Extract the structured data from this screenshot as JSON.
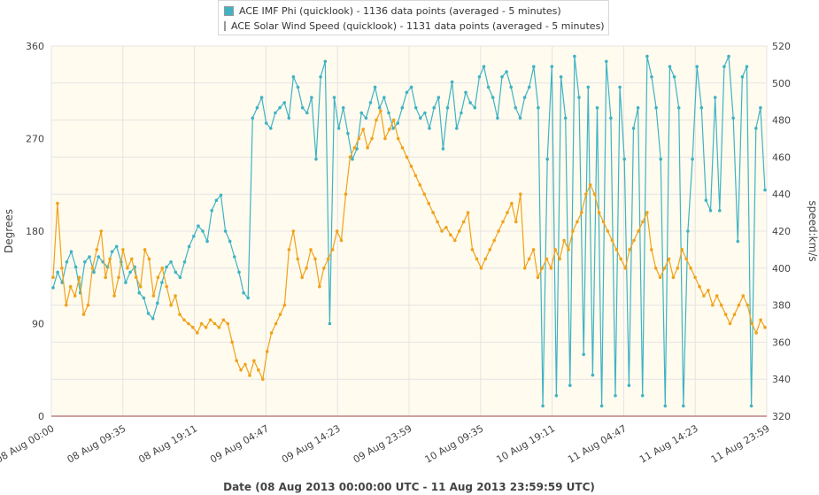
{
  "legend": {
    "items": [
      {
        "label": "ACE IMF Phi (quicklook) - 1136 data points (averaged - 5 minutes)",
        "color": "#3fb3c4"
      },
      {
        "label": "ACE Solar Wind Speed (quicklook) - 1131 data points (averaged - 5 minutes)",
        "color": "#f0a21a"
      }
    ]
  },
  "chart_data": {
    "type": "line",
    "xlabel": "Date (08 Aug 2013 00:00:00 UTC - 11 Aug 2013 23:59:59 UTC)",
    "x_ticks": [
      "08 Aug 00:00",
      "08 Aug 09:35",
      "08 Aug 19:11",
      "09 Aug 04:47",
      "09 Aug 14:23",
      "09 Aug 23:59",
      "10 Aug 09:35",
      "10 Aug 19:11",
      "11 Aug 04:47",
      "11 Aug 14:23",
      "11 Aug 23:59"
    ],
    "y_left": {
      "label": "Degrees",
      "ticks": [
        0,
        90,
        180,
        270,
        360
      ],
      "range": [
        0,
        360
      ]
    },
    "y_right": {
      "label": "speed:km/s",
      "ticks": [
        320,
        340,
        360,
        380,
        400,
        420,
        440,
        460,
        480,
        500,
        520
      ],
      "range": [
        320,
        520
      ]
    },
    "grid": true,
    "legend_position": "top-center",
    "series": [
      {
        "name": "ACE IMF Phi (quicklook) - 1136 data points (averaged - 5 minutes)",
        "axis": "left",
        "color": "#3fb3c4",
        "values": [
          125,
          140,
          130,
          150,
          160,
          145,
          120,
          150,
          155,
          140,
          155,
          150,
          145,
          160,
          165,
          150,
          130,
          140,
          145,
          120,
          115,
          100,
          95,
          110,
          130,
          145,
          150,
          140,
          135,
          150,
          165,
          175,
          185,
          180,
          170,
          200,
          210,
          215,
          180,
          170,
          155,
          140,
          120,
          115,
          290,
          300,
          310,
          285,
          280,
          295,
          300,
          305,
          290,
          330,
          320,
          300,
          295,
          310,
          250,
          330,
          345,
          90,
          310,
          280,
          300,
          275,
          250,
          260,
          295,
          290,
          305,
          320,
          300,
          310,
          295,
          280,
          285,
          300,
          315,
          320,
          300,
          290,
          295,
          280,
          300,
          310,
          260,
          300,
          325,
          280,
          295,
          315,
          305,
          300,
          330,
          340,
          320,
          310,
          290,
          330,
          335,
          320,
          300,
          290,
          310,
          320,
          340,
          300,
          10,
          250,
          340,
          20,
          330,
          290,
          30,
          350,
          310,
          60,
          320,
          40,
          300,
          10,
          345,
          290,
          20,
          320,
          250,
          30,
          280,
          300,
          20,
          350,
          330,
          300,
          250,
          10,
          340,
          330,
          300,
          10,
          180,
          250,
          340,
          300,
          210,
          200,
          310,
          200,
          340,
          350,
          290,
          170,
          330,
          340,
          10,
          280,
          300,
          220
        ]
      },
      {
        "name": "ACE Solar Wind Speed (quicklook) - 1131 data points (averaged - 5 minutes)",
        "axis": "right",
        "color": "#f0a21a",
        "values": [
          395,
          435,
          400,
          380,
          390,
          385,
          395,
          375,
          380,
          400,
          410,
          420,
          395,
          405,
          385,
          395,
          410,
          400,
          405,
          395,
          390,
          410,
          405,
          385,
          395,
          400,
          390,
          380,
          385,
          375,
          372,
          370,
          368,
          365,
          370,
          368,
          372,
          370,
          368,
          372,
          370,
          360,
          350,
          345,
          348,
          342,
          350,
          345,
          340,
          355,
          365,
          370,
          375,
          380,
          410,
          420,
          405,
          395,
          400,
          410,
          405,
          390,
          400,
          405,
          410,
          420,
          415,
          440,
          460,
          465,
          470,
          475,
          465,
          470,
          480,
          485,
          470,
          475,
          480,
          470,
          465,
          460,
          455,
          450,
          445,
          440,
          435,
          430,
          425,
          420,
          422,
          418,
          415,
          420,
          425,
          430,
          410,
          405,
          400,
          405,
          410,
          415,
          420,
          425,
          430,
          435,
          425,
          440,
          400,
          405,
          410,
          395,
          400,
          405,
          400,
          410,
          405,
          415,
          410,
          420,
          425,
          430,
          440,
          445,
          440,
          430,
          425,
          420,
          415,
          410,
          405,
          400,
          410,
          415,
          420,
          425,
          430,
          410,
          400,
          395,
          400,
          405,
          395,
          400,
          410,
          405,
          400,
          395,
          390,
          385,
          388,
          380,
          385,
          380,
          375,
          370,
          375,
          380,
          385,
          380,
          370,
          365,
          372,
          368
        ]
      }
    ]
  }
}
